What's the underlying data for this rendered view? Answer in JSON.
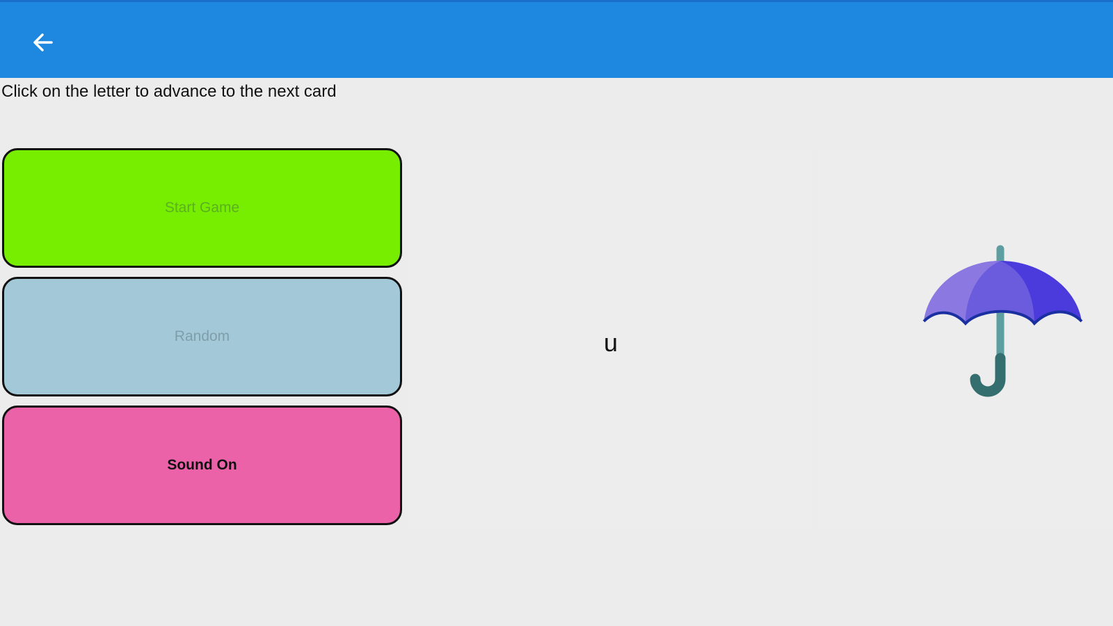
{
  "app_bar": {
    "back_icon": "arrow-left-icon",
    "color": "#1e88e0"
  },
  "instruction": "Click on the letter to advance to the next card",
  "buttons": [
    {
      "label": "Start Game",
      "color": "#77ee00"
    },
    {
      "label": "Random",
      "color": "#a3c9d9"
    },
    {
      "label": "Sound On",
      "color": "#ec62a8"
    }
  ],
  "card": {
    "letter": "u",
    "picture": "umbrella-icon"
  }
}
